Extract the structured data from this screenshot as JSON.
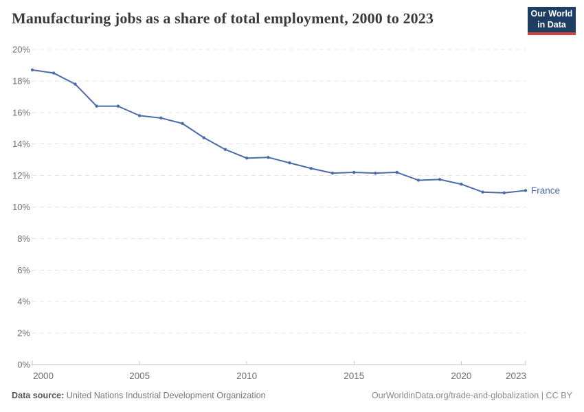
{
  "header": {
    "title": "Manufacturing jobs as a share of total employment, 2000 to 2023",
    "logo": {
      "line1": "Our World",
      "line2": "in Data",
      "bg_color": "#1d3d63",
      "accent_color": "#d0403d"
    }
  },
  "chart_data": {
    "type": "line",
    "title": "Manufacturing jobs as a share of total employment, 2000 to 2023",
    "xlabel": "",
    "ylabel": "",
    "xlim": [
      2000,
      2023
    ],
    "ylim": [
      0,
      20
    ],
    "x_ticks": [
      2000,
      2005,
      2010,
      2015,
      2020,
      2023
    ],
    "y_ticks": [
      0,
      2,
      4,
      6,
      8,
      10,
      12,
      14,
      16,
      18,
      20
    ],
    "y_tick_suffix": "%",
    "grid": "horizontal-dashed",
    "legend_position": "end-of-line-label",
    "series": [
      {
        "name": "France",
        "color": "#4c6ba9",
        "x": [
          2000,
          2001,
          2002,
          2003,
          2004,
          2005,
          2006,
          2007,
          2008,
          2009,
          2010,
          2011,
          2012,
          2013,
          2014,
          2015,
          2016,
          2017,
          2018,
          2019,
          2020,
          2021,
          2022,
          2023
        ],
        "values": [
          18.7,
          18.5,
          17.8,
          16.4,
          16.4,
          15.8,
          15.65,
          15.3,
          14.4,
          13.65,
          13.1,
          13.15,
          12.8,
          12.45,
          12.15,
          12.2,
          12.15,
          12.2,
          11.7,
          11.75,
          11.45,
          10.95,
          10.9,
          11.05
        ]
      }
    ],
    "style": {
      "grid_color": "#e3e3e3",
      "axis_color": "#c6c6c6",
      "tick_label_color": "#6e6e6e"
    }
  },
  "footer": {
    "datasource_label": "Data source:",
    "datasource_value": " United Nations Industrial Development Organization",
    "credit": "OurWorldinData.org/trade-and-globalization | CC BY"
  }
}
